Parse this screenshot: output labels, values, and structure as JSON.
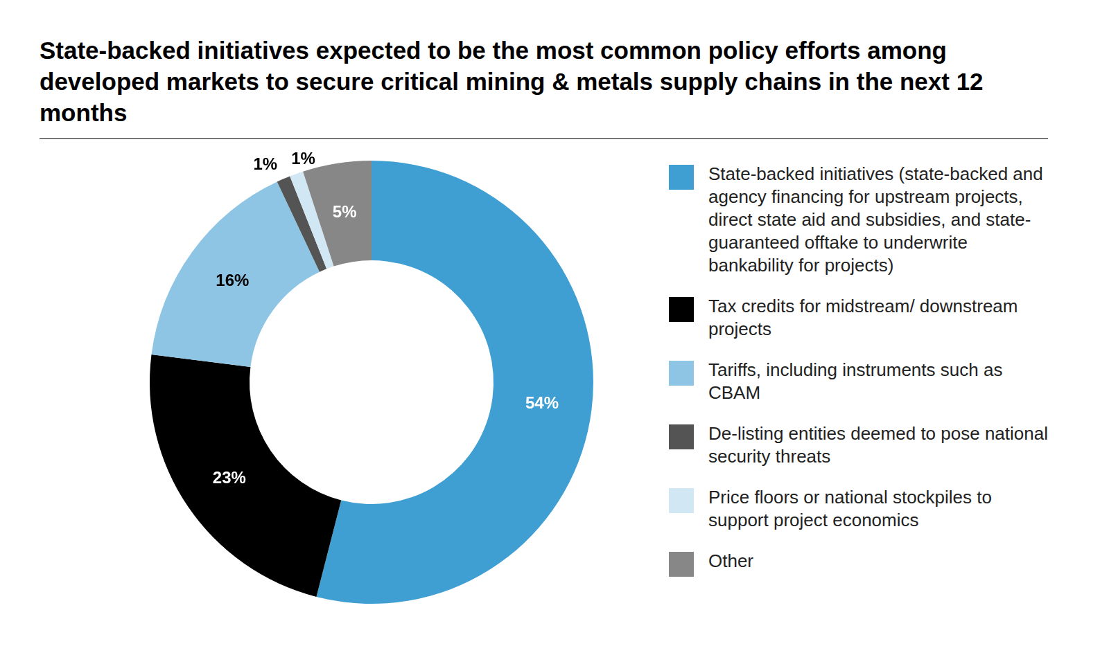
{
  "chart_data": {
    "type": "doughnut",
    "title": "State-backed initiatives expected to be the most common policy efforts among developed markets to secure critical mining & metals supply chains in the next 12 months",
    "categories": [
      "State-backed initiatives (state-backed and agency financing for upstream projects, direct state aid and subsidies, and state-guaranteed offtake to underwrite bankability for projects)",
      "Tax credits for midstream/ downstream projects",
      "Tariffs, including instruments such as CBAM",
      "De-listing entities deemed to pose national security threats",
      "Price floors or national stockpiles to support project economics",
      "Other"
    ],
    "values": [
      54,
      23,
      16,
      1,
      1,
      5
    ],
    "value_labels": [
      "54%",
      "23%",
      "16%",
      "1%",
      "1%",
      "5%"
    ],
    "colors": [
      "#3f9fd3",
      "#000000",
      "#8ec5e4",
      "#545454",
      "#d2e7f4",
      "#878787"
    ],
    "data_labels": true,
    "legend": "right"
  }
}
